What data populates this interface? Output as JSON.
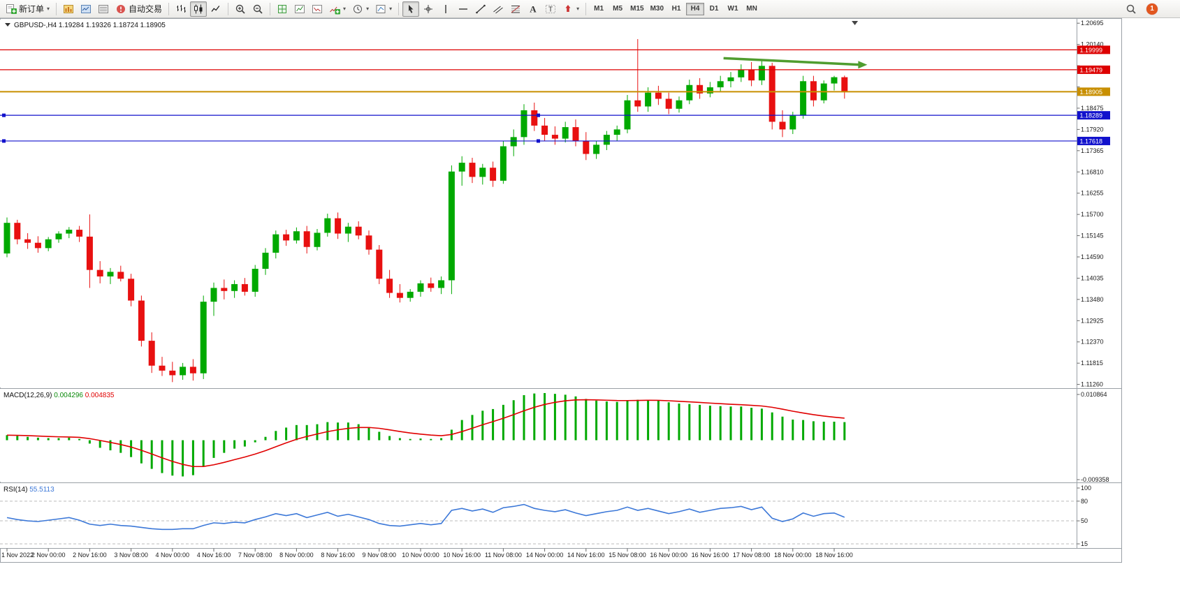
{
  "toolbar": {
    "buttons": [
      {
        "name": "new-order-button",
        "icon": "new-order",
        "label": "新订单",
        "dropdown": true
      },
      {
        "sep": true
      },
      {
        "name": "market-watch-button",
        "icon": "chart-window"
      },
      {
        "name": "navigator-button",
        "icon": "market-watch"
      },
      {
        "name": "terminal-button",
        "icon": "data-window"
      },
      {
        "name": "auto-trading-button",
        "icon": "auto-trading",
        "label": "自动交易"
      },
      {
        "sep": true
      },
      {
        "name": "bar-chart-button",
        "icon": "bars"
      },
      {
        "name": "candlestick-chart-button",
        "icon": "candles",
        "active": true
      },
      {
        "name": "line-chart-button",
        "icon": "line"
      },
      {
        "sep": true
      },
      {
        "name": "zoom-in-button",
        "icon": "zoom-in"
      },
      {
        "name": "zoom-out-button",
        "icon": "zoom-out"
      },
      {
        "sep": true
      },
      {
        "name": "tile-windows-button",
        "icon": "tile"
      },
      {
        "name": "indicators-list-button",
        "icon": "chart-list"
      },
      {
        "name": "objects-list-button",
        "icon": "chart-template"
      },
      {
        "name": "add-indicator-button",
        "icon": "indicator-plus",
        "dropdown": true
      },
      {
        "name": "periods-button",
        "icon": "clock",
        "dropdown": true
      },
      {
        "name": "templates-button",
        "icon": "template",
        "dropdown": true
      },
      {
        "sep": true
      },
      {
        "name": "cursor-button",
        "icon": "cursor",
        "active": true
      },
      {
        "name": "crosshair-button",
        "icon": "crosshair"
      },
      {
        "name": "vertical-line-button",
        "icon": "vline"
      },
      {
        "name": "horizontal-line-button",
        "icon": "hline"
      },
      {
        "name": "trendline-button",
        "icon": "trendline"
      },
      {
        "name": "channel-button",
        "icon": "channel"
      },
      {
        "name": "fibonacci-button",
        "icon": "fibo"
      },
      {
        "name": "text-button",
        "icon": "text"
      },
      {
        "name": "label-button",
        "icon": "label"
      },
      {
        "name": "arrows-button",
        "icon": "shapes",
        "dropdown": true
      },
      {
        "sep": true
      }
    ],
    "timeframes": {
      "items": [
        "M1",
        "M5",
        "M15",
        "M30",
        "H1",
        "H4",
        "D1",
        "W1",
        "MN"
      ],
      "active": "H4"
    },
    "notification_count": "1"
  },
  "chart_header": {
    "symbol": "GBPUSD-,H4",
    "open": "1.19284",
    "high": "1.19326",
    "low": "1.18724",
    "close": "1.18905"
  },
  "chart_data": {
    "type": "candlestick",
    "symbol": "GBPUSD-",
    "timeframe": "H4",
    "candle_format": [
      "open",
      "high",
      "low",
      "close"
    ],
    "first_candle_time": "1 Nov 2022 08:00",
    "interval_hours": 4,
    "bull_color": "#00a900",
    "bear_color": "#e81010",
    "candles": [
      [
        1.1468,
        1.1562,
        1.1458,
        1.1548
      ],
      [
        1.1548,
        1.1556,
        1.1492,
        1.1505
      ],
      [
        1.1505,
        1.1521,
        1.148,
        1.1496
      ],
      [
        1.1496,
        1.1513,
        1.147,
        1.1482
      ],
      [
        1.1482,
        1.1511,
        1.1474,
        1.1505
      ],
      [
        1.1505,
        1.1526,
        1.1496,
        1.152
      ],
      [
        1.152,
        1.1537,
        1.1508,
        1.153
      ],
      [
        1.153,
        1.154,
        1.1498,
        1.1512
      ],
      [
        1.1512,
        1.157,
        1.1378,
        1.1425
      ],
      [
        1.1425,
        1.1448,
        1.139,
        1.1408
      ],
      [
        1.1408,
        1.143,
        1.1388,
        1.142
      ],
      [
        1.142,
        1.1436,
        1.1395,
        1.1402
      ],
      [
        1.1402,
        1.1415,
        1.133,
        1.1345
      ],
      [
        1.1345,
        1.1358,
        1.1225,
        1.124
      ],
      [
        1.124,
        1.1262,
        1.1156,
        1.1175
      ],
      [
        1.1175,
        1.1198,
        1.1148,
        1.1162
      ],
      [
        1.1162,
        1.1185,
        1.1132,
        1.115
      ],
      [
        1.115,
        1.1182,
        1.1138,
        1.1172
      ],
      [
        1.1172,
        1.1192,
        1.1136,
        1.1155
      ],
      [
        1.1155,
        1.1358,
        1.114,
        1.1342
      ],
      [
        1.1342,
        1.1392,
        1.1305,
        1.1378
      ],
      [
        1.1378,
        1.14,
        1.1348,
        1.137
      ],
      [
        1.137,
        1.1398,
        1.1352,
        1.1388
      ],
      [
        1.1388,
        1.1404,
        1.1358,
        1.1368
      ],
      [
        1.1368,
        1.1438,
        1.1355,
        1.1428
      ],
      [
        1.1428,
        1.1482,
        1.1412,
        1.147
      ],
      [
        1.147,
        1.1528,
        1.1455,
        1.1518
      ],
      [
        1.1518,
        1.153,
        1.1488,
        1.1502
      ],
      [
        1.1502,
        1.1536,
        1.1494,
        1.1526
      ],
      [
        1.1526,
        1.154,
        1.1468,
        1.1485
      ],
      [
        1.1485,
        1.1532,
        1.1476,
        1.1522
      ],
      [
        1.1522,
        1.1572,
        1.1512,
        1.156
      ],
      [
        1.156,
        1.1575,
        1.1506,
        1.152
      ],
      [
        1.152,
        1.1548,
        1.1498,
        1.1538
      ],
      [
        1.1538,
        1.1552,
        1.1505,
        1.1515
      ],
      [
        1.1515,
        1.1528,
        1.1465,
        1.1478
      ],
      [
        1.1478,
        1.149,
        1.1388,
        1.1402
      ],
      [
        1.1402,
        1.1425,
        1.1352,
        1.1365
      ],
      [
        1.1365,
        1.1388,
        1.134,
        1.1352
      ],
      [
        1.1352,
        1.1375,
        1.1342,
        1.1368
      ],
      [
        1.1368,
        1.1398,
        1.1355,
        1.139
      ],
      [
        1.139,
        1.1405,
        1.1368,
        1.1378
      ],
      [
        1.1378,
        1.1408,
        1.1362,
        1.1398
      ],
      [
        1.1398,
        1.1698,
        1.1362,
        1.1682
      ],
      [
        1.1682,
        1.1722,
        1.1645,
        1.1705
      ],
      [
        1.1705,
        1.1718,
        1.1652,
        1.1668
      ],
      [
        1.1668,
        1.1702,
        1.1648,
        1.1692
      ],
      [
        1.1692,
        1.1708,
        1.1642,
        1.1658
      ],
      [
        1.1658,
        1.1762,
        1.165,
        1.1748
      ],
      [
        1.1748,
        1.1792,
        1.1722,
        1.1772
      ],
      [
        1.1772,
        1.1858,
        1.1752,
        1.1842
      ],
      [
        1.1842,
        1.1862,
        1.1788,
        1.1802
      ],
      [
        1.1802,
        1.1822,
        1.1762,
        1.1778
      ],
      [
        1.1778,
        1.18,
        1.1752,
        1.1768
      ],
      [
        1.1768,
        1.1812,
        1.1758,
        1.1798
      ],
      [
        1.1798,
        1.1818,
        1.1748,
        1.1762
      ],
      [
        1.1762,
        1.1785,
        1.1712,
        1.1728
      ],
      [
        1.1728,
        1.1762,
        1.1715,
        1.1752
      ],
      [
        1.1752,
        1.1788,
        1.1738,
        1.1778
      ],
      [
        1.1778,
        1.1802,
        1.1762,
        1.1792
      ],
      [
        1.1792,
        1.1882,
        1.1782,
        1.1868
      ],
      [
        1.1868,
        1.2028,
        1.1838,
        1.1852
      ],
      [
        1.1852,
        1.1902,
        1.1838,
        1.1888
      ],
      [
        1.1888,
        1.1906,
        1.1856,
        1.1872
      ],
      [
        1.1872,
        1.1888,
        1.1832,
        1.1846
      ],
      [
        1.1846,
        1.1878,
        1.1836,
        1.1868
      ],
      [
        1.1868,
        1.1922,
        1.1858,
        1.1908
      ],
      [
        1.1908,
        1.1926,
        1.1872,
        1.1886
      ],
      [
        1.1886,
        1.1916,
        1.1876,
        1.1902
      ],
      [
        1.1902,
        1.1932,
        1.1892,
        1.1918
      ],
      [
        1.1918,
        1.1942,
        1.1902,
        1.1928
      ],
      [
        1.1928,
        1.1962,
        1.1916,
        1.1948
      ],
      [
        1.1948,
        1.1968,
        1.1905,
        1.192
      ],
      [
        1.192,
        1.1972,
        1.1908,
        1.1958
      ],
      [
        1.1958,
        1.1966,
        1.1792,
        1.1812
      ],
      [
        1.1812,
        1.1842,
        1.1772,
        1.1792
      ],
      [
        1.1792,
        1.1838,
        1.178,
        1.1828
      ],
      [
        1.1828,
        1.1932,
        1.182,
        1.1918
      ],
      [
        1.1918,
        1.1932,
        1.1852,
        1.1868
      ],
      [
        1.1868,
        1.192,
        1.186,
        1.1912
      ],
      [
        1.1912,
        1.1932,
        1.1894,
        1.19284
      ],
      [
        1.19284,
        1.19326,
        1.18724,
        1.18905
      ]
    ],
    "y_axis": {
      "plot_price_top": 1.2079,
      "plot_price_bottom": 1.1118,
      "ticks": [
        "1.20695",
        "1.20140",
        "1.19585",
        "1.19030",
        "1.18475",
        "1.17920",
        "1.17365",
        "1.16810",
        "1.16255",
        "1.15700",
        "1.15145",
        "1.14590",
        "1.14035",
        "1.13480",
        "1.12925",
        "1.12370",
        "1.11815",
        "1.11260"
      ]
    },
    "x_labels": [
      "1 Nov 2022",
      "2 Nov 00:00",
      "2 Nov 16:00",
      "3 Nov 08:00",
      "4 Nov 00:00",
      "4 Nov 16:00",
      "7 Nov 08:00",
      "8 Nov 00:00",
      "8 Nov 16:00",
      "9 Nov 08:00",
      "10 Nov 00:00",
      "10 Nov 16:00",
      "11 Nov 08:00",
      "14 Nov 00:00",
      "14 Nov 16:00",
      "15 Nov 08:00",
      "16 Nov 00:00",
      "16 Nov 16:00",
      "17 Nov 08:00",
      "18 Nov 00:00",
      "18 Nov 16:00"
    ],
    "price_lines": [
      {
        "price": 1.19999,
        "label": "1.19999",
        "color": "#dd0000",
        "type": "resistance"
      },
      {
        "price": 1.19479,
        "label": "1.19479",
        "color": "#dd0000",
        "type": "resistance"
      },
      {
        "price": 1.18905,
        "label": "1.18905",
        "color": "#c88f00",
        "type": "current-price"
      },
      {
        "price": 1.18289,
        "label": "1.18289",
        "color": "#1111cc",
        "type": "support",
        "handles": true
      },
      {
        "price": 1.17618,
        "label": "1.17618",
        "color": "#1111cc",
        "type": "support",
        "handles": true
      }
    ],
    "trend_arrow": {
      "from_index": 69.3,
      "from_price": 1.1978,
      "to_index": 83.2,
      "to_price": 1.1961,
      "color": "#4f9d2f"
    },
    "shift_marker_index": 82,
    "indicators": {
      "macd": {
        "label": "MACD(12,26,9)",
        "value_main": "0.004296",
        "value_signal": "0.004835",
        "scale_top": "0.010864",
        "scale_bottom": "-0.009358",
        "scale_top_value": 0.010864,
        "scale_bottom_value": -0.009358,
        "histogram_color": "#00a900",
        "signal_color": "#e00000",
        "histogram": [
          0.0012,
          0.001,
          0.0008,
          0.0006,
          0.0005,
          0.0005,
          0.0006,
          0.0003,
          -0.0008,
          -0.0018,
          -0.0024,
          -0.003,
          -0.004,
          -0.0055,
          -0.0068,
          -0.0078,
          -0.0084,
          -0.0086,
          -0.0083,
          -0.0062,
          -0.0042,
          -0.003,
          -0.002,
          -0.0015,
          -0.0005,
          0.0008,
          0.0022,
          0.003,
          0.0036,
          0.0036,
          0.0038,
          0.0043,
          0.0042,
          0.0042,
          0.0038,
          0.0031,
          0.002,
          0.001,
          0.0005,
          0.0003,
          0.0004,
          0.0003,
          0.0005,
          0.0025,
          0.0048,
          0.006,
          0.007,
          0.0074,
          0.0084,
          0.0095,
          0.0107,
          0.0111,
          0.0112,
          0.011,
          0.0108,
          0.0104,
          0.0098,
          0.0094,
          0.0092,
          0.0091,
          0.0094,
          0.0096,
          0.0096,
          0.0094,
          0.009,
          0.0087,
          0.0086,
          0.0084,
          0.0082,
          0.0081,
          0.008,
          0.008,
          0.0077,
          0.0075,
          0.0066,
          0.0056,
          0.0049,
          0.0048,
          0.0045,
          0.0044,
          0.0044,
          0.0043
        ]
      },
      "rsi": {
        "label": "RSI(14)",
        "value": "55.5113",
        "line_color": "#3c78d8",
        "scale_labels": [
          "100",
          "80",
          "50",
          "15"
        ],
        "scale_values": [
          100,
          80,
          50,
          15
        ],
        "levels": [
          80,
          50,
          15
        ],
        "values": [
          55,
          52,
          50,
          49,
          51,
          53,
          55,
          51,
          45,
          43,
          45,
          43,
          42,
          40,
          38,
          37,
          37,
          38,
          38,
          43,
          47,
          46,
          48,
          47,
          52,
          56,
          61,
          58,
          61,
          55,
          59,
          63,
          57,
          60,
          56,
          52,
          46,
          43,
          42,
          44,
          46,
          44,
          46,
          66,
          69,
          65,
          68,
          63,
          70,
          72,
          75,
          69,
          66,
          64,
          67,
          62,
          58,
          61,
          64,
          66,
          71,
          66,
          69,
          65,
          61,
          64,
          68,
          63,
          66,
          69,
          70,
          72,
          67,
          71,
          54,
          49,
          53,
          62,
          57,
          61,
          62,
          55.5
        ]
      }
    }
  }
}
